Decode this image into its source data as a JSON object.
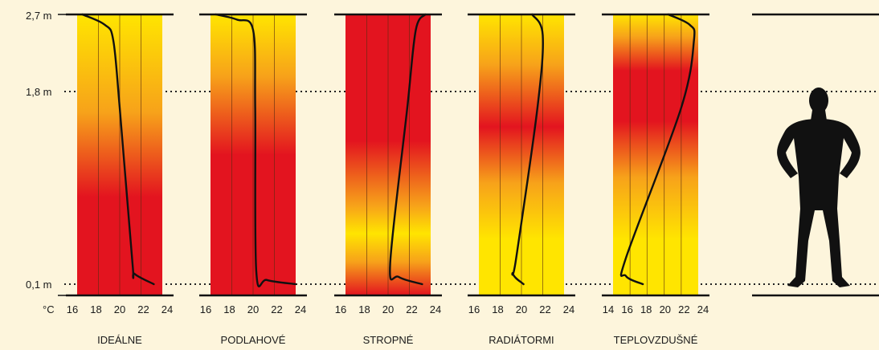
{
  "height_labels": [
    "2,7 m",
    "1,8 m",
    "0,1 m"
  ],
  "unit_label": "°C",
  "colors": {
    "background": "#fdf5dc",
    "warm_yellow": "#ffe500",
    "mid_orange": "#f7a21a",
    "hot_red": "#e3141f",
    "curve": "#111111",
    "silhouette": "#111111"
  },
  "panels": [
    {
      "name": "IDEÁLNE",
      "scale_min": 16,
      "scale_max": 24,
      "ticks": [
        "16",
        "18",
        "20",
        "22",
        "24"
      ],
      "gradient": [
        [
          0,
          "red"
        ],
        [
          0.35,
          "red"
        ],
        [
          0.65,
          "orange"
        ],
        [
          1,
          "yellow"
        ]
      ],
      "profile": [
        [
          0.1,
          23.2
        ],
        [
          0.2,
          21.4
        ],
        [
          0.3,
          21.2
        ],
        [
          1.8,
          20.0
        ],
        [
          2.45,
          19.4
        ],
        [
          2.6,
          18.6
        ],
        [
          2.7,
          16.5
        ]
      ]
    },
    {
      "name": "PODLAHOVÉ",
      "scale_min": 16,
      "scale_max": 24,
      "ticks": [
        "16",
        "18",
        "20",
        "22",
        "24"
      ],
      "gradient": [
        [
          0,
          "red"
        ],
        [
          0.5,
          "red"
        ],
        [
          0.78,
          "orange"
        ],
        [
          1,
          "yellow"
        ]
      ],
      "profile": [
        [
          0.1,
          24.0
        ],
        [
          0.14,
          21.3
        ],
        [
          0.22,
          20.3
        ],
        [
          1.8,
          20.2
        ],
        [
          2.55,
          20.0
        ],
        [
          2.65,
          18.5
        ],
        [
          2.7,
          16.5
        ]
      ]
    },
    {
      "name": "STROPNÉ",
      "scale_min": 16,
      "scale_max": 24,
      "ticks": [
        "16",
        "18",
        "20",
        "22",
        "24"
      ],
      "gradient": [
        [
          0,
          "red"
        ],
        [
          0.12,
          "orange"
        ],
        [
          0.22,
          "yellow"
        ],
        [
          0.32,
          "orange"
        ],
        [
          0.55,
          "red"
        ],
        [
          1,
          "red"
        ]
      ],
      "profile": [
        [
          0.1,
          23.2
        ],
        [
          0.17,
          21.0
        ],
        [
          0.3,
          20.2
        ],
        [
          1.8,
          21.8
        ],
        [
          2.55,
          22.6
        ],
        [
          2.7,
          23.5
        ]
      ]
    },
    {
      "name": "RADIÁTORMI",
      "scale_min": 16,
      "scale_max": 24,
      "ticks": [
        "16",
        "18",
        "20",
        "22",
        "24"
      ],
      "gradient": [
        [
          0,
          "yellow"
        ],
        [
          0.2,
          "yellow"
        ],
        [
          0.4,
          "orange"
        ],
        [
          0.6,
          "red"
        ],
        [
          0.82,
          "orange"
        ],
        [
          1,
          "yellow"
        ]
      ],
      "profile": [
        [
          0.1,
          20.2
        ],
        [
          0.2,
          19.2
        ],
        [
          0.35,
          19.5
        ],
        [
          1.8,
          21.5
        ],
        [
          2.5,
          22.0
        ],
        [
          2.7,
          21.0
        ]
      ]
    },
    {
      "name": "TEPLOVZDUŠNÉ",
      "scale_min": 14,
      "scale_max": 24,
      "ticks": [
        "14",
        "16",
        "18",
        "20",
        "22",
        "24"
      ],
      "gradient": [
        [
          0,
          "yellow"
        ],
        [
          0.2,
          "yellow"
        ],
        [
          0.42,
          "orange"
        ],
        [
          0.62,
          "red"
        ],
        [
          0.8,
          "red"
        ],
        [
          0.92,
          "orange"
        ],
        [
          1,
          "yellow"
        ]
      ],
      "profile": [
        [
          0.1,
          17.5
        ],
        [
          0.18,
          15.5
        ],
        [
          0.35,
          15.5
        ],
        [
          1.8,
          22.0
        ],
        [
          2.45,
          23.5
        ],
        [
          2.6,
          23.0
        ],
        [
          2.7,
          20.5
        ]
      ]
    }
  ]
}
